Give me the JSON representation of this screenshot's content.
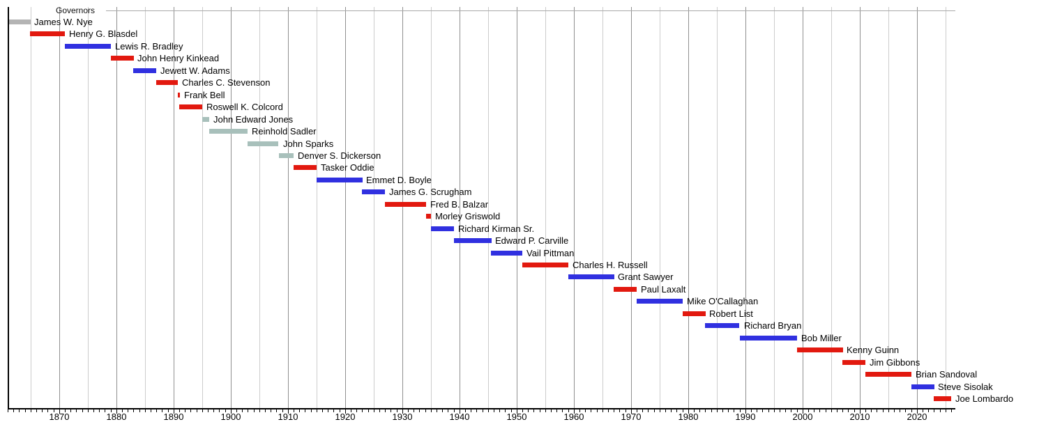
{
  "chart_data": {
    "type": "bar",
    "subtype": "gantt-timeline",
    "title": "Governors",
    "x_axis": {
      "min": 1861,
      "max": 2026.7,
      "gridline_interval_years": 5,
      "tick_interval_years": 1,
      "label_interval_years": 10,
      "tick_labels": [
        "1870",
        "1880",
        "1890",
        "1900",
        "1910",
        "1920",
        "1930",
        "1940",
        "1950",
        "1960",
        "1970",
        "1980",
        "1990",
        "2000",
        "2010",
        "2020"
      ]
    },
    "palette": {
      "red": "#e2190f",
      "blue": "#3030e0",
      "silver": "#a8c0bb",
      "gray": "#b4b4b4",
      "gridline_major": "#8f8f8f",
      "gridline_minor": "#cccccc",
      "axis": "#000000"
    },
    "governors": [
      {
        "name": "James W. Nye",
        "start": 1861.2,
        "end": 1864.93,
        "color": "gray"
      },
      {
        "name": "Henry G. Blasdel",
        "start": 1864.93,
        "end": 1871.0,
        "color": "red"
      },
      {
        "name": "Lewis R. Bradley",
        "start": 1871.0,
        "end": 1879.02,
        "color": "blue"
      },
      {
        "name": "John Henry Kinkead",
        "start": 1879.02,
        "end": 1883.0,
        "color": "red"
      },
      {
        "name": "Jewett W. Adams",
        "start": 1883.0,
        "end": 1887.0,
        "color": "blue"
      },
      {
        "name": "Charles C. Stevenson",
        "start": 1887.0,
        "end": 1890.72,
        "color": "red"
      },
      {
        "name": "Frank Bell",
        "start": 1890.72,
        "end": 1891.02,
        "color": "red"
      },
      {
        "name": "Roswell K. Colcord",
        "start": 1891.02,
        "end": 1895.02,
        "color": "red"
      },
      {
        "name": "John Edward Jones",
        "start": 1895.02,
        "end": 1896.27,
        "color": "silver"
      },
      {
        "name": "Reinhold Sadler",
        "start": 1896.27,
        "end": 1903.0,
        "color": "silver"
      },
      {
        "name": "John Sparks",
        "start": 1903.0,
        "end": 1908.39,
        "color": "silver"
      },
      {
        "name": "Denver S. Dickerson",
        "start": 1908.39,
        "end": 1911.0,
        "color": "silver"
      },
      {
        "name": "Tasker Oddie",
        "start": 1911.0,
        "end": 1915.01,
        "color": "red"
      },
      {
        "name": "Emmet D. Boyle",
        "start": 1915.01,
        "end": 1923.0,
        "color": "blue"
      },
      {
        "name": "James G. Scrugham",
        "start": 1923.0,
        "end": 1927.01,
        "color": "blue"
      },
      {
        "name": "Fred B. Balzar",
        "start": 1927.01,
        "end": 1934.22,
        "color": "red"
      },
      {
        "name": "Morley Griswold",
        "start": 1934.22,
        "end": 1935.02,
        "color": "red"
      },
      {
        "name": "Richard Kirman Sr.",
        "start": 1935.02,
        "end": 1939.0,
        "color": "blue"
      },
      {
        "name": "Edward P. Carville",
        "start": 1939.0,
        "end": 1945.56,
        "color": "blue"
      },
      {
        "name": "Vail Pittman",
        "start": 1945.56,
        "end": 1951.0,
        "color": "blue"
      },
      {
        "name": "Charles H. Russell",
        "start": 1951.0,
        "end": 1959.01,
        "color": "red"
      },
      {
        "name": "Grant Sawyer",
        "start": 1959.01,
        "end": 1967.0,
        "color": "blue"
      },
      {
        "name": "Paul Laxalt",
        "start": 1967.0,
        "end": 1971.01,
        "color": "red"
      },
      {
        "name": "Mike O'Callaghan",
        "start": 1971.01,
        "end": 1979.0,
        "color": "blue"
      },
      {
        "name": "Robert List",
        "start": 1979.0,
        "end": 1983.01,
        "color": "red"
      },
      {
        "name": "Richard Bryan",
        "start": 1983.01,
        "end": 1989.01,
        "color": "blue"
      },
      {
        "name": "Bob Miller",
        "start": 1989.01,
        "end": 1999.01,
        "color": "blue"
      },
      {
        "name": "Kenny Guinn",
        "start": 1999.01,
        "end": 2007.0,
        "color": "red"
      },
      {
        "name": "Jim Gibbons",
        "start": 2007.0,
        "end": 2011.01,
        "color": "red"
      },
      {
        "name": "Brian Sandoval",
        "start": 2011.01,
        "end": 2019.02,
        "color": "red"
      },
      {
        "name": "Steve Sisolak",
        "start": 2019.02,
        "end": 2023.0,
        "color": "blue"
      },
      {
        "name": "Joe Lombardo",
        "start": 2023.0,
        "end": 2026.0,
        "color": "red"
      }
    ]
  }
}
